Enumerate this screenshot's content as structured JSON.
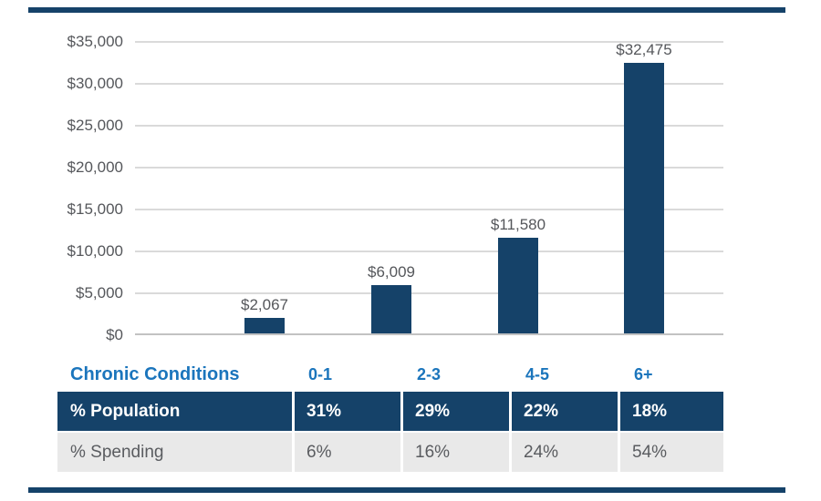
{
  "chart_data": {
    "type": "bar",
    "title": "",
    "xlabel": "",
    "ylabel": "",
    "categories": [
      "0-1",
      "2-3",
      "4-5",
      "6+"
    ],
    "values": [
      2067,
      6009,
      11580,
      32475
    ],
    "value_labels": [
      "$2,067",
      "$6,009",
      "$11,580",
      "$32,475"
    ],
    "ylim": [
      0,
      35000
    ],
    "yticks": [
      0,
      5000,
      10000,
      15000,
      20000,
      25000,
      30000,
      35000
    ],
    "ytick_labels": [
      "$0",
      "$5,000",
      "$10,000",
      "$15,000",
      "$20,000",
      "$25,000",
      "$30,000",
      "$35,000"
    ],
    "grid": "horizontal gridlines on, no vertical axis line",
    "legend": "none",
    "bar_color": "#154269"
  },
  "conditions_header": {
    "label": "Chronic Conditions",
    "categories": [
      "0-1",
      "2-3",
      "4-5",
      "6+"
    ]
  },
  "table": {
    "rows": [
      {
        "label": "% Population",
        "values": [
          "31%",
          "29%",
          "22%",
          "18%"
        ]
      },
      {
        "label": "% Spending",
        "values": [
          "6%",
          "16%",
          "24%",
          "54%"
        ]
      }
    ]
  },
  "colors": {
    "navy": "#154269",
    "blue_text": "#1B75BC",
    "axis_text": "#55575B",
    "gray_row_bg": "#E9E9E9",
    "gray_row_text": "#5A5C60",
    "gridline": "#DADADA",
    "baseline": "#C2C2C2",
    "white": "#FFFFFF"
  }
}
